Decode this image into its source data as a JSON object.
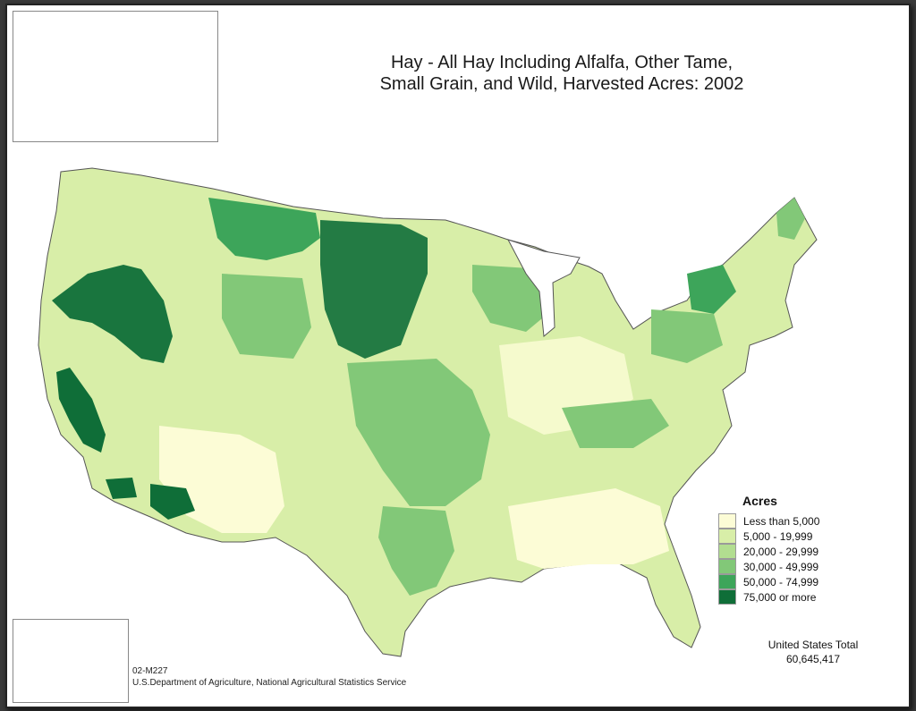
{
  "title": {
    "line1": "Hay - All Hay Including Alfalfa, Other Tame,",
    "line2": "Small Grain, and Wild, Harvested Acres:  2002"
  },
  "legend": {
    "title": "Acres",
    "items": [
      {
        "label": "Less than 5,000",
        "color": "#fcfcd6"
      },
      {
        "label": "5,000 - 19,999",
        "color": "#d8eea8"
      },
      {
        "label": "20,000 - 29,999",
        "color": "#b2de90"
      },
      {
        "label": "30,000 - 49,999",
        "color": "#82c878"
      },
      {
        "label": "50,000 - 74,999",
        "color": "#3da55a"
      },
      {
        "label": "75,000 or more",
        "color": "#0f6e38"
      }
    ]
  },
  "total": {
    "label": "United States Total",
    "value": "60,645,417"
  },
  "footer": {
    "code": "02-M227",
    "source": "U.S.Department of Agriculture, National Agricultural Statistics Service"
  },
  "colors": {
    "background": "#ffffff",
    "border": "#222222",
    "outline": "#555555"
  }
}
